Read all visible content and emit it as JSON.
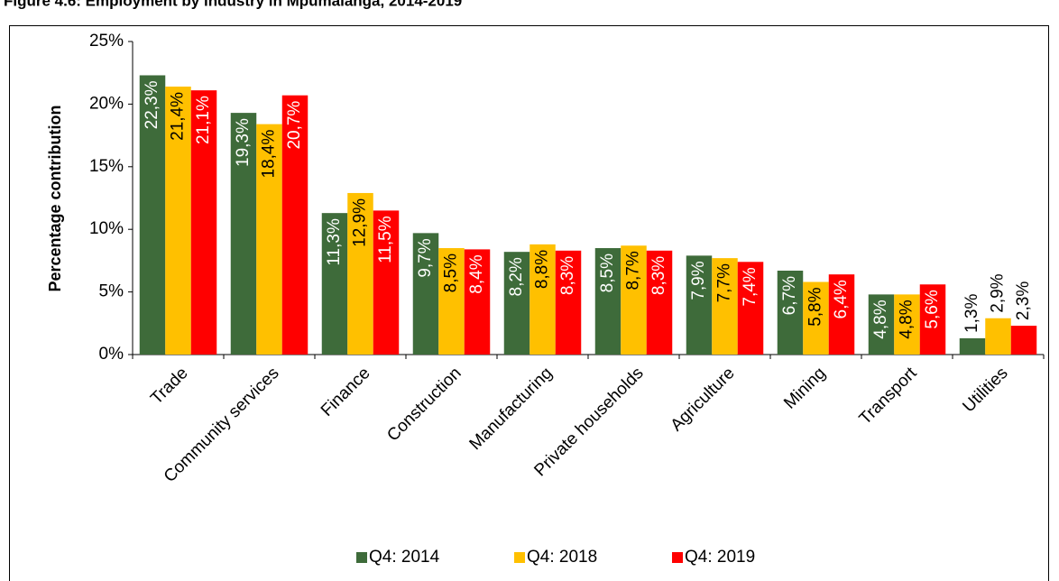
{
  "chart_data": {
    "type": "bar",
    "title": "Figure 4.6: Employment by industry in Mpumalanga, 2014-2019",
    "y_label": "Percentage contribution",
    "categories": [
      "Trade",
      "Community services",
      "Finance",
      "Construction",
      "Manufacturing",
      "Private households",
      "Agriculture",
      "Mining",
      "Transport",
      "Utilities"
    ],
    "series": [
      {
        "name": "Q4: 2014",
        "color": "#3e6b3a",
        "values": [
          22.3,
          19.3,
          11.3,
          9.7,
          8.2,
          8.5,
          7.9,
          6.7,
          4.8,
          1.3
        ],
        "value_labels": [
          "22,3%",
          "19,3%",
          "11,3%",
          "9,7%",
          "8,2%",
          "8,5%",
          "7,9%",
          "6,7%",
          "4,8%",
          "1,3%"
        ]
      },
      {
        "name": "Q4: 2018",
        "color": "#ffc000",
        "values": [
          21.4,
          18.4,
          12.9,
          8.5,
          8.8,
          8.7,
          7.7,
          5.8,
          4.8,
          2.9
        ],
        "value_labels": [
          "21,4%",
          "18,4%",
          "12,9%",
          "8,5%",
          "8,8%",
          "8,7%",
          "7,7%",
          "5,8%",
          "4,8%",
          "2,9%"
        ]
      },
      {
        "name": "Q4: 2019",
        "color": "#ff0000",
        "values": [
          21.1,
          20.7,
          11.5,
          8.4,
          8.3,
          8.3,
          7.4,
          6.4,
          5.6,
          2.3
        ],
        "value_labels": [
          "21,1%",
          "20,7%",
          "11,5%",
          "8,4%",
          "8,3%",
          "8,3%",
          "7,4%",
          "6,4%",
          "5,6%",
          "2,3%"
        ]
      }
    ],
    "ylim": [
      0,
      25
    ],
    "yticks": [
      {
        "value": 0,
        "label": "0%"
      },
      {
        "value": 5,
        "label": "5%"
      },
      {
        "value": 10,
        "label": "10%"
      },
      {
        "value": 15,
        "label": "15%"
      },
      {
        "value": 20,
        "label": "20%"
      },
      {
        "value": 25,
        "label": "25%"
      }
    ],
    "legend": "bottom"
  }
}
